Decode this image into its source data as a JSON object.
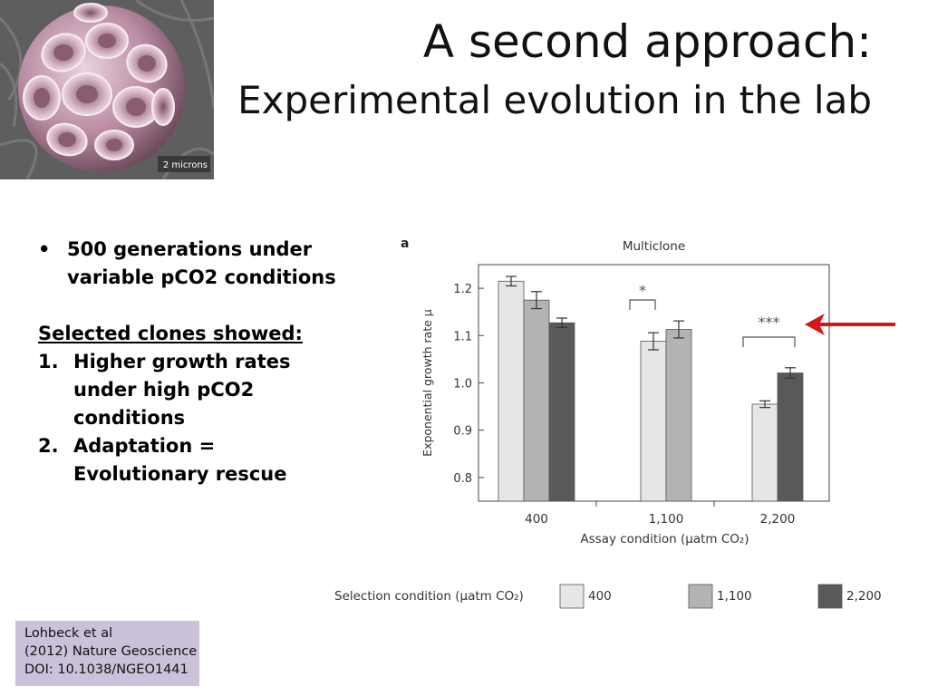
{
  "title_line1": "A second approach:",
  "title_line2": "Experimental evolution in the lab",
  "coccolith": {
    "scale_label": "2 microns"
  },
  "bullets": [
    "500 generations under variable pCO2 conditions"
  ],
  "selected_heading": "Selected clones showed:",
  "numbered": [
    {
      "num": "1.",
      "text": "Higher growth rates under high pCO2 conditions"
    },
    {
      "num": "2.",
      "text": "Adaptation = Evolutionary rescue"
    }
  ],
  "citation": {
    "line1": "Lohbeck et al",
    "line2": "(2012) Nature Geoscience",
    "line3": "DOI: 10.1038/NGEO1441"
  },
  "arrow_color": "#d11919",
  "chart_data": {
    "type": "bar",
    "panel_label": "a",
    "title": "Multiclone",
    "xlabel": "Assay condition (μatm CO₂)",
    "ylabel": "Exponential growth rate μ",
    "ylim": [
      0.75,
      1.25
    ],
    "yticks": [
      0.8,
      0.9,
      1.0,
      1.1,
      1.2
    ],
    "ytick_labels": [
      "0.8",
      "0.9",
      "1.0",
      "1.1",
      "1.2"
    ],
    "categories": [
      "400",
      "1,100",
      "2,200"
    ],
    "legend_title": "Selection condition (μatm CO₂)",
    "series": [
      {
        "name": "400",
        "color": "#e6e6e6",
        "values": [
          1.215,
          1.088,
          0.955
        ],
        "errors": [
          0.01,
          0.018,
          0.007
        ]
      },
      {
        "name": "1,100",
        "color": "#b3b3b3",
        "values": [
          1.175,
          1.113,
          null
        ],
        "errors": [
          0.018,
          0.018,
          null
        ]
      },
      {
        "name": "2,200",
        "color": "#595959",
        "values": [
          1.127,
          null,
          1.021
        ],
        "errors": [
          0.01,
          null,
          0.011
        ]
      }
    ],
    "significance": [
      {
        "label": "*",
        "category": "1,100"
      },
      {
        "label": "***",
        "category": "2,200"
      }
    ],
    "grid": false,
    "legend_position": "bottom"
  }
}
